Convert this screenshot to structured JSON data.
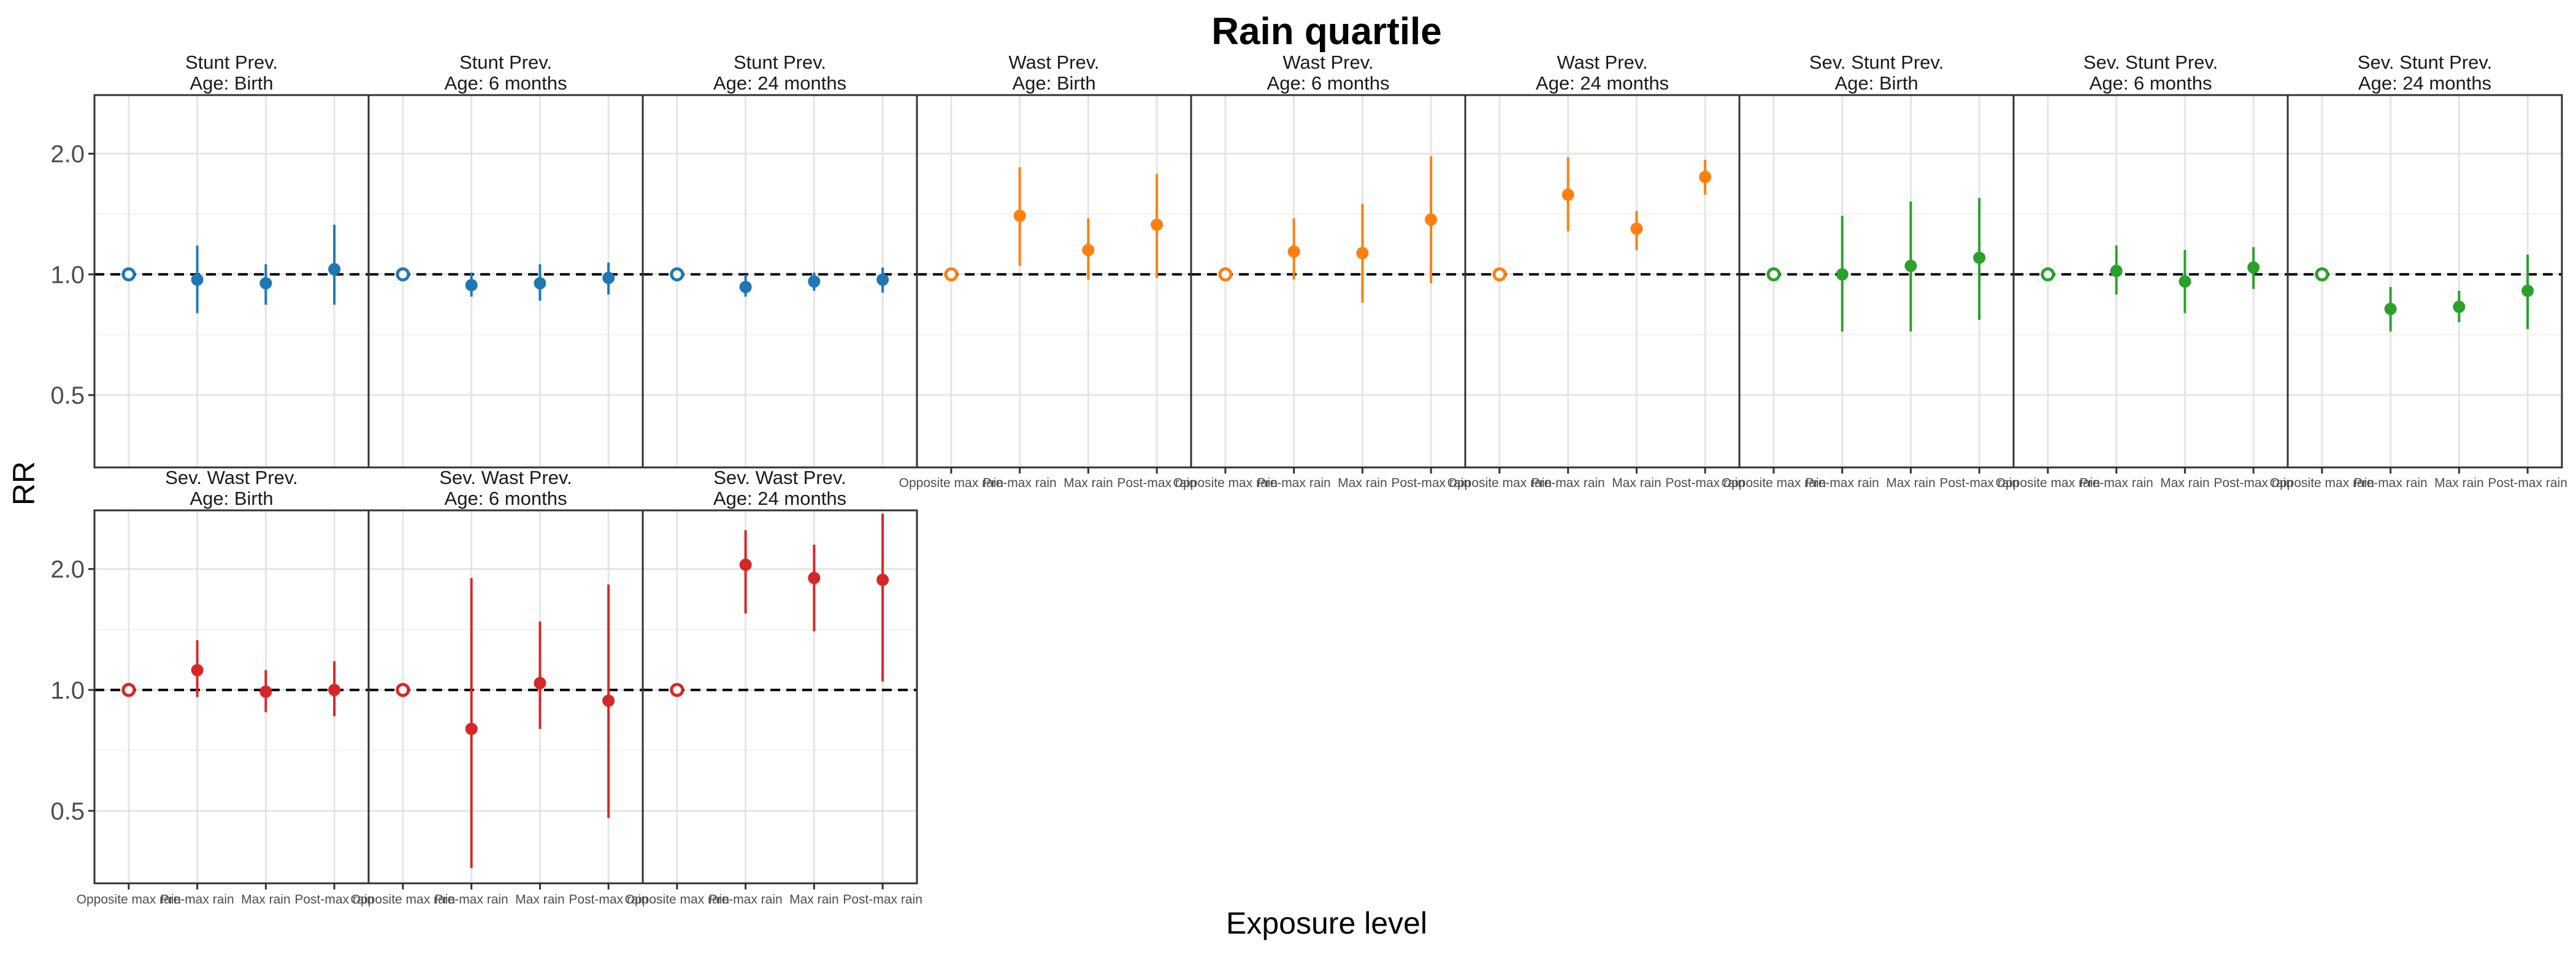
{
  "chart_data": {
    "type": "scatter",
    "title": "Rain quartile",
    "xlabel": "Exposure level",
    "ylabel": "RR",
    "y_scale": "log",
    "ylim": [
      0.33,
      2.8
    ],
    "y_ticks": [
      0.5,
      1.0,
      2.0
    ],
    "y_tick_labels": [
      "0.5",
      "1.0",
      "2.0"
    ],
    "reference_line": 1.0,
    "grid": true,
    "categories": [
      "Opposite max rain",
      "Pre-max rain",
      "Max rain",
      "Post-max rain"
    ],
    "colors": {
      "blue": "#1f77b4",
      "orange": "#ff7f0e",
      "green": "#2ca02c",
      "red": "#d62728"
    },
    "panels": [
      {
        "title_line1": "Stunt Prev.",
        "title_line2": "Age: Birth",
        "color": "blue",
        "points": [
          {
            "rr": 1.0,
            "lo": 1.0,
            "hi": 1.0
          },
          {
            "rr": 0.97,
            "lo": 0.8,
            "hi": 1.18
          },
          {
            "rr": 0.95,
            "lo": 0.84,
            "hi": 1.06
          },
          {
            "rr": 1.03,
            "lo": 0.84,
            "hi": 1.33
          }
        ]
      },
      {
        "title_line1": "Stunt Prev.",
        "title_line2": "Age: 6 months",
        "color": "blue",
        "points": [
          {
            "rr": 1.0,
            "lo": 1.0,
            "hi": 1.0
          },
          {
            "rr": 0.94,
            "lo": 0.88,
            "hi": 1.01
          },
          {
            "rr": 0.95,
            "lo": 0.86,
            "hi": 1.06
          },
          {
            "rr": 0.98,
            "lo": 0.89,
            "hi": 1.07
          }
        ]
      },
      {
        "title_line1": "Stunt Prev.",
        "title_line2": "Age: 24 months",
        "color": "blue",
        "points": [
          {
            "rr": 1.0,
            "lo": 1.0,
            "hi": 1.0
          },
          {
            "rr": 0.93,
            "lo": 0.88,
            "hi": 1.0
          },
          {
            "rr": 0.96,
            "lo": 0.91,
            "hi": 1.01
          },
          {
            "rr": 0.97,
            "lo": 0.9,
            "hi": 1.04
          }
        ]
      },
      {
        "title_line1": "Wast Prev.",
        "title_line2": "Age: Birth",
        "color": "orange",
        "points": [
          {
            "rr": 1.0,
            "lo": 1.0,
            "hi": 1.0
          },
          {
            "rr": 1.4,
            "lo": 1.05,
            "hi": 1.85
          },
          {
            "rr": 1.15,
            "lo": 0.97,
            "hi": 1.38
          },
          {
            "rr": 1.33,
            "lo": 0.98,
            "hi": 1.78
          }
        ]
      },
      {
        "title_line1": "Wast Prev.",
        "title_line2": "Age: 6 months",
        "color": "orange",
        "points": [
          {
            "rr": 1.0,
            "lo": 1.0,
            "hi": 1.0
          },
          {
            "rr": 1.14,
            "lo": 0.97,
            "hi": 1.38
          },
          {
            "rr": 1.13,
            "lo": 0.85,
            "hi": 1.5
          },
          {
            "rr": 1.37,
            "lo": 0.95,
            "hi": 1.97
          }
        ]
      },
      {
        "title_line1": "Wast Prev.",
        "title_line2": "Age: 24 months",
        "color": "orange",
        "points": [
          {
            "rr": 1.0,
            "lo": 1.0,
            "hi": 1.0
          },
          {
            "rr": 1.58,
            "lo": 1.28,
            "hi": 1.96
          },
          {
            "rr": 1.3,
            "lo": 1.15,
            "hi": 1.44
          },
          {
            "rr": 1.75,
            "lo": 1.58,
            "hi": 1.93
          }
        ]
      },
      {
        "title_line1": "Sev. Stunt Prev.",
        "title_line2": "Age: Birth",
        "color": "green",
        "points": [
          {
            "rr": 1.0,
            "lo": 1.0,
            "hi": 1.0
          },
          {
            "rr": 1.0,
            "lo": 0.72,
            "hi": 1.4
          },
          {
            "rr": 1.05,
            "lo": 0.72,
            "hi": 1.52
          },
          {
            "rr": 1.1,
            "lo": 0.77,
            "hi": 1.55
          }
        ]
      },
      {
        "title_line1": "Sev. Stunt Prev.",
        "title_line2": "Age: 6 months",
        "color": "green",
        "points": [
          {
            "rr": 1.0,
            "lo": 1.0,
            "hi": 1.0
          },
          {
            "rr": 1.02,
            "lo": 0.89,
            "hi": 1.18
          },
          {
            "rr": 0.96,
            "lo": 0.8,
            "hi": 1.15
          },
          {
            "rr": 1.04,
            "lo": 0.92,
            "hi": 1.17
          }
        ]
      },
      {
        "title_line1": "Sev. Stunt Prev.",
        "title_line2": "Age: 24 months",
        "color": "green",
        "points": [
          {
            "rr": 1.0,
            "lo": 1.0,
            "hi": 1.0
          },
          {
            "rr": 0.82,
            "lo": 0.72,
            "hi": 0.93
          },
          {
            "rr": 0.83,
            "lo": 0.76,
            "hi": 0.91
          },
          {
            "rr": 0.91,
            "lo": 0.73,
            "hi": 1.12
          }
        ]
      }
    ],
    "panels_row2": [
      {
        "title_line1": "Sev. Wast Prev.",
        "title_line2": "Age: Birth",
        "color": "red",
        "points": [
          {
            "rr": 1.0,
            "lo": 1.0,
            "hi": 1.0
          },
          {
            "rr": 1.12,
            "lo": 0.96,
            "hi": 1.33
          },
          {
            "rr": 0.99,
            "lo": 0.88,
            "hi": 1.12
          },
          {
            "rr": 1.0,
            "lo": 0.86,
            "hi": 1.18
          }
        ]
      },
      {
        "title_line1": "Sev. Wast Prev.",
        "title_line2": "Age: 6 months",
        "color": "red",
        "points": [
          {
            "rr": 1.0,
            "lo": 1.0,
            "hi": 1.0
          },
          {
            "rr": 0.8,
            "lo": 0.36,
            "hi": 1.9
          },
          {
            "rr": 1.04,
            "lo": 0.8,
            "hi": 1.48
          },
          {
            "rr": 0.94,
            "lo": 0.48,
            "hi": 1.83
          }
        ]
      },
      {
        "title_line1": "Sev. Wast Prev.",
        "title_line2": "Age: 24 months",
        "color": "red",
        "points": [
          {
            "rr": 1.0,
            "lo": 1.0,
            "hi": 1.0
          },
          {
            "rr": 2.05,
            "lo": 1.55,
            "hi": 2.5
          },
          {
            "rr": 1.9,
            "lo": 1.4,
            "hi": 2.3
          },
          {
            "rr": 1.88,
            "lo": 1.05,
            "hi": 2.75
          }
        ]
      }
    ]
  }
}
